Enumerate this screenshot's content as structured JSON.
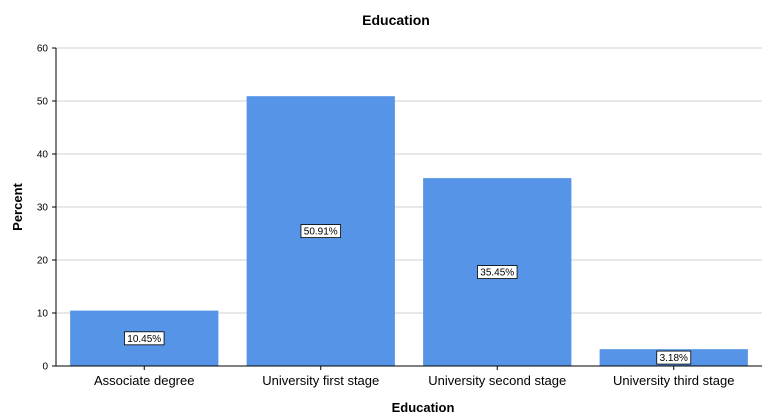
{
  "chart_data": {
    "type": "bar",
    "title": "Education",
    "xlabel": "Education",
    "ylabel": "Percent",
    "categories": [
      "Associate degree",
      "University first stage",
      "University second stage",
      "University third stage"
    ],
    "values": [
      10.45,
      50.91,
      35.45,
      3.18
    ],
    "data_labels": [
      "10.45%",
      "50.91%",
      "35.45%",
      "3.18%"
    ],
    "ylim": [
      0,
      60
    ],
    "yticks": [
      0,
      10,
      20,
      30,
      40,
      50,
      60
    ],
    "grid": true,
    "bar_color": "#5594e6"
  }
}
